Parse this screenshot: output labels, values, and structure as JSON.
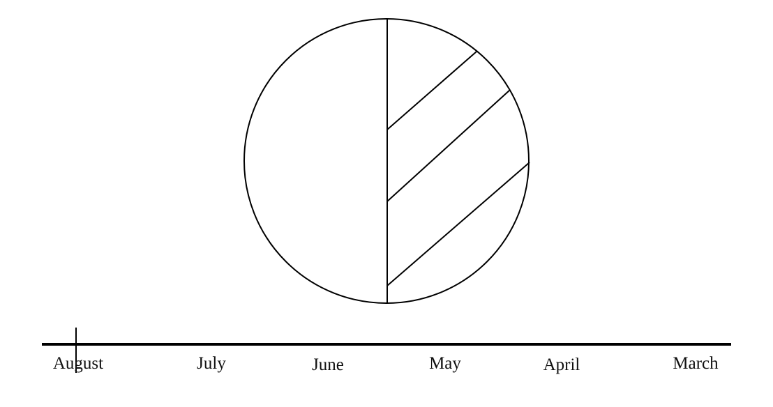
{
  "diagram": {
    "type": "moon-phase-timeline",
    "stroke_color": "#000000",
    "background_color": "#ffffff",
    "shading": "diagonal hatch on right half",
    "timeline_labels": [
      "August",
      "July",
      "June",
      "May",
      "April",
      "March"
    ]
  }
}
